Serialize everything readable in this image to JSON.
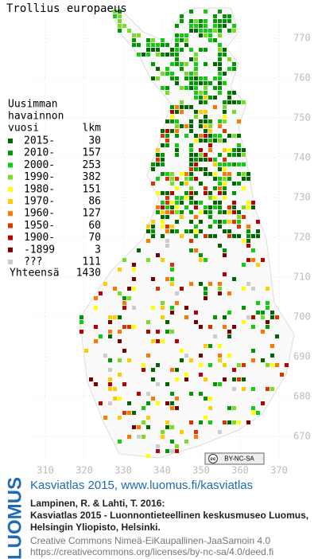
{
  "title": "Trollius europaeus",
  "legend": {
    "heading": [
      "Uusimman",
      "havainnon",
      "vuosi"
    ],
    "count_heading": "lkm",
    "entries": [
      {
        "label": "2015-",
        "count": 30,
        "color": "#006600"
      },
      {
        "label": "2010-",
        "count": 157,
        "color": "#009900"
      },
      {
        "label": "2000-",
        "count": 253,
        "color": "#11cc11"
      },
      {
        "label": "1990-",
        "count": 382,
        "color": "#77dd22"
      },
      {
        "label": "1980-",
        "count": 151,
        "color": "#ffff00"
      },
      {
        "label": "1970-",
        "count": 86,
        "color": "#ffcc00"
      },
      {
        "label": "1960-",
        "count": 127,
        "color": "#ff7700"
      },
      {
        "label": "1950-",
        "count": 60,
        "color": "#dd3300"
      },
      {
        "label": "1900-",
        "count": 70,
        "color": "#bb0000"
      },
      {
        "label": "-1899",
        "count": 3,
        "color": "#770000"
      },
      {
        "label": "???",
        "count": 111,
        "color": "#cccccc"
      }
    ],
    "total_label": "Yhteensä",
    "total": 1430
  },
  "x_ticks": [
    310,
    320,
    330,
    340,
    350,
    360,
    370
  ],
  "y_ticks": [
    770,
    760,
    750,
    740,
    730,
    720,
    710,
    700,
    690,
    680,
    670
  ],
  "badge": {
    "cc": "cc",
    "license": "BY-NC-SA"
  },
  "footer": {
    "logo": "LUOMUS",
    "link": "Kasviatlas 2015, www.luomus.fi/kasviatlas",
    "citation": [
      "Lampinen, R. & Lahti, T. 2016:",
      "Kasviatlas 2015 - Luonnontieteellinen keskusmuseo Luomus,",
      "Helsingin Yliopisto, Helsinki."
    ],
    "license": [
      "Creative Commons Nimeä-EiKaupallinen-JaaSamoin 4.0",
      "https://creativecommons.org/licenses/by-nc-sa/4.0/deed.fi"
    ]
  }
}
